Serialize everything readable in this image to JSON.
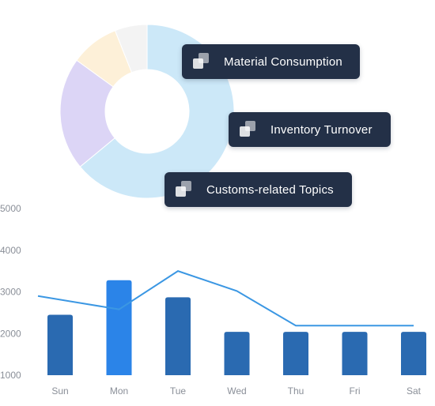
{
  "tags": [
    {
      "label": "Material Consumption",
      "icon": "stacked-squares-icon"
    },
    {
      "label": "Inventory Turnover",
      "icon": "stacked-squares-icon"
    },
    {
      "label": "Customs-related Topics",
      "icon": "stacked-squares-icon"
    }
  ],
  "donut": {
    "slices": [
      {
        "value": 64,
        "color": "#cce8f8"
      },
      {
        "value": 21,
        "color": "#dcd5f6"
      },
      {
        "value": 9,
        "color": "#fdf0d8"
      },
      {
        "value": 6,
        "color": "#f3f3f3"
      }
    ]
  },
  "chart_data": {
    "type": "bar",
    "categories": [
      "Sun",
      "Mon",
      "Tue",
      "Wed",
      "Thu",
      "Fri",
      "Sat"
    ],
    "series": [
      {
        "type": "bar",
        "values": [
          2450,
          3280,
          2870,
          2040,
          2040,
          2040,
          2040
        ],
        "color": "#2a6ab1",
        "highlight_color": "#2b84e8",
        "highlight_index": 1
      },
      {
        "type": "line",
        "values": [
          2900,
          2580,
          3500,
          3020,
          2190,
          2190,
          2190
        ],
        "color": "#3b97e3"
      }
    ],
    "y_ticks": [
      1000,
      2000,
      3000,
      4000,
      5000
    ],
    "ylim": [
      1000,
      5000
    ],
    "grid": false
  }
}
